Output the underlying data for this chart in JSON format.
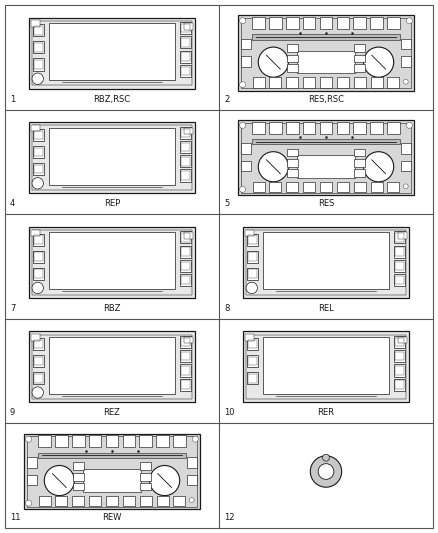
{
  "items": [
    {
      "num": 1,
      "label": "RBZ,RSC",
      "type": "widescreen",
      "col": 0,
      "row": 0,
      "variant": "A"
    },
    {
      "num": 2,
      "label": "RES,RSC",
      "type": "traditional",
      "col": 1,
      "row": 0,
      "variant": "A"
    },
    {
      "num": 4,
      "label": "REP",
      "type": "widescreen",
      "col": 0,
      "row": 1,
      "variant": "B"
    },
    {
      "num": 5,
      "label": "RES",
      "type": "traditional",
      "col": 1,
      "row": 1,
      "variant": "A"
    },
    {
      "num": 7,
      "label": "RBZ",
      "type": "widescreen",
      "col": 0,
      "row": 2,
      "variant": "C"
    },
    {
      "num": 8,
      "label": "REL",
      "type": "widescreen",
      "col": 1,
      "row": 2,
      "variant": "C"
    },
    {
      "num": 9,
      "label": "REZ",
      "type": "widescreen",
      "col": 0,
      "row": 3,
      "variant": "C"
    },
    {
      "num": 10,
      "label": "RER",
      "type": "widescreen",
      "col": 1,
      "row": 3,
      "variant": "D"
    },
    {
      "num": 11,
      "label": "REW",
      "type": "traditional",
      "col": 0,
      "row": 4,
      "variant": "A"
    },
    {
      "num": 12,
      "label": "",
      "type": "knob",
      "col": 1,
      "row": 4,
      "variant": ""
    }
  ],
  "bg_color": "#ffffff",
  "lc": "#1a1a1a",
  "grid_lc": "#555555"
}
